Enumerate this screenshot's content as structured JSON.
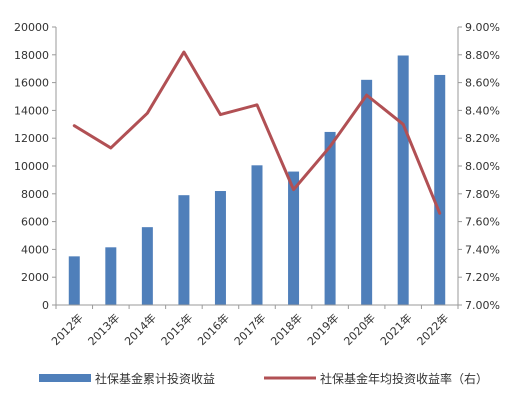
{
  "chart_data": {
    "type": "bar",
    "categories": [
      "2012年",
      "2013年",
      "2014年",
      "2015年",
      "2016年",
      "2017年",
      "2018年",
      "2019年",
      "2020年",
      "2021年",
      "2022年"
    ],
    "series": [
      {
        "name": "社保基金累计投资收益",
        "type": "bar",
        "axis": "left",
        "color": "#4f7fba",
        "values": [
          3500,
          4150,
          5600,
          7900,
          8200,
          10050,
          9600,
          12450,
          16200,
          17950,
          16550
        ]
      },
      {
        "name": "社保基金年均投资收益率（右）",
        "type": "line",
        "axis": "right",
        "color": "#b15054",
        "values": [
          8.29,
          8.13,
          8.38,
          8.82,
          8.37,
          8.44,
          7.83,
          8.14,
          8.51,
          8.3,
          7.66
        ]
      }
    ],
    "y_left": {
      "min": 0,
      "max": 20000,
      "ticks": [
        "0",
        "2000",
        "4000",
        "6000",
        "8000",
        "10000",
        "12000",
        "14000",
        "16000",
        "18000",
        "20000"
      ]
    },
    "y_right": {
      "min": 7.0,
      "max": 9.0,
      "ticks": [
        "7.00%",
        "7.20%",
        "7.40%",
        "7.60%",
        "7.80%",
        "8.00%",
        "8.20%",
        "8.40%",
        "8.60%",
        "8.80%",
        "9.00%"
      ]
    },
    "grid": false,
    "legend_position": "bottom"
  },
  "legend": {
    "bar_label": "社保基金累计投资收益",
    "line_label": "社保基金年均投资收益率（右）"
  }
}
